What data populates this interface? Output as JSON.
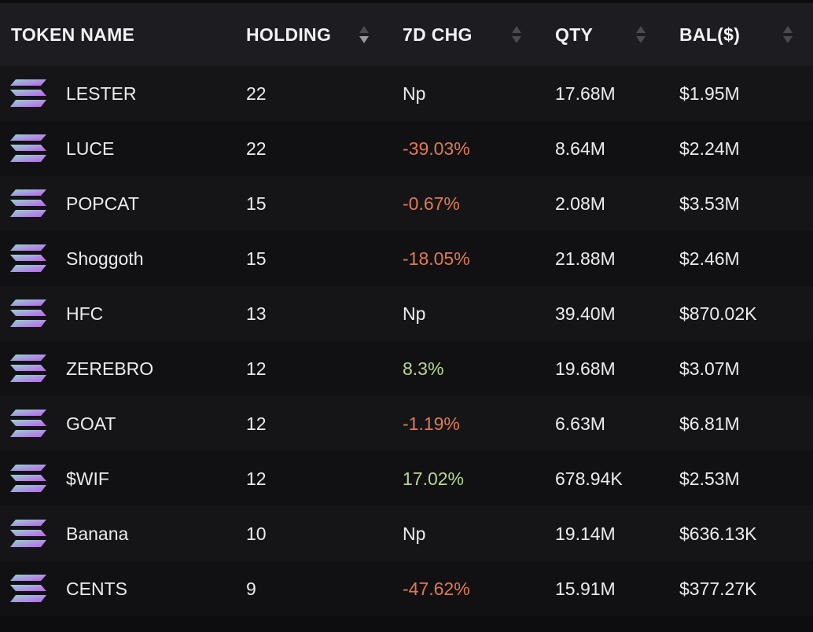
{
  "header": {
    "token_name": "TOKEN NAME",
    "holding": "HOLDING",
    "chg": "7D CHG",
    "qty": "QTY",
    "bal": "BAL($)"
  },
  "icon": "solana-logo-icon",
  "colors": {
    "negative": "#e07a52",
    "positive": "#b7d88f",
    "neutral": "#ececf0"
  },
  "rows": [
    {
      "name": "LESTER",
      "holding": "22",
      "chg": "Np",
      "chg_dir": "neu",
      "qty": "17.68M",
      "bal": "$1.95M"
    },
    {
      "name": "LUCE",
      "holding": "22",
      "chg": "-39.03%",
      "chg_dir": "neg",
      "qty": "8.64M",
      "bal": "$2.24M"
    },
    {
      "name": "POPCAT",
      "holding": "15",
      "chg": "-0.67%",
      "chg_dir": "neg",
      "qty": "2.08M",
      "bal": "$3.53M"
    },
    {
      "name": "Shoggoth",
      "holding": "15",
      "chg": "-18.05%",
      "chg_dir": "neg",
      "qty": "21.88M",
      "bal": "$2.46M"
    },
    {
      "name": "HFC",
      "holding": "13",
      "chg": "Np",
      "chg_dir": "neu",
      "qty": "39.40M",
      "bal": "$870.02K"
    },
    {
      "name": "ZEREBRO",
      "holding": "12",
      "chg": "8.3%",
      "chg_dir": "pos",
      "qty": "19.68M",
      "bal": "$3.07M"
    },
    {
      "name": "GOAT",
      "holding": "12",
      "chg": "-1.19%",
      "chg_dir": "neg",
      "qty": "6.63M",
      "bal": "$6.81M"
    },
    {
      "name": "$WIF",
      "holding": "12",
      "chg": "17.02%",
      "chg_dir": "pos",
      "qty": "678.94K",
      "bal": "$2.53M"
    },
    {
      "name": "Banana",
      "holding": "10",
      "chg": "Np",
      "chg_dir": "neu",
      "qty": "19.14M",
      "bal": "$636.13K"
    },
    {
      "name": "CENTS",
      "holding": "9",
      "chg": "-47.62%",
      "chg_dir": "neg",
      "qty": "15.91M",
      "bal": "$377.27K"
    }
  ]
}
